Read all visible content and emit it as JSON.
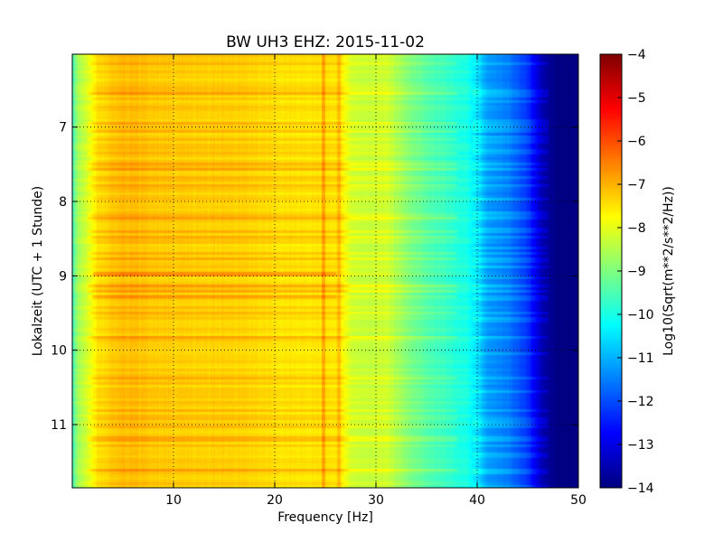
{
  "chart_data": {
    "type": "heatmap",
    "title": "BW UH3 EHZ: 2015-11-02",
    "xlabel": "Frequency [Hz]",
    "ylabel": "Lokalzeit (UTC + 1 Stunde)",
    "colorbar_label": "Log10(Sqrt(m**2/s**2/Hz))",
    "xlim": [
      0,
      50
    ],
    "ylim": [
      11.85,
      6.02
    ],
    "y_inverted": true,
    "xticks": [
      10,
      20,
      30,
      40,
      50
    ],
    "xtick_labels": [
      "10",
      "20",
      "30",
      "40",
      "50"
    ],
    "yticks": [
      7,
      8,
      9,
      10,
      11
    ],
    "ytick_labels": [
      "7",
      "8",
      "9",
      "10",
      "11"
    ],
    "colorbar_range": [
      -14,
      -4
    ],
    "colorbar_ticks": [
      -4,
      -5,
      -6,
      -7,
      -8,
      -9,
      -10,
      -11,
      -12,
      -13,
      -14
    ],
    "colorbar_tick_labels": [
      "−4",
      "−5",
      "−6",
      "−7",
      "−8",
      "−9",
      "−10",
      "−11",
      "−12",
      "−13",
      "−14"
    ],
    "colormap": "jet",
    "grid": "dotted",
    "frequency_profile": {
      "frequency_hz": [
        0,
        0.5,
        1.5,
        2.5,
        5,
        10,
        17,
        22,
        24,
        25.5,
        26.5,
        27.5,
        29,
        31,
        33,
        35,
        37,
        39,
        41,
        43,
        45,
        46.5,
        48,
        50
      ],
      "log10_amplitude": [
        -9.6,
        -8.6,
        -8.1,
        -7.4,
        -7.05,
        -7.25,
        -7.3,
        -7.5,
        -7.45,
        -7.5,
        -7.55,
        -8.2,
        -8.3,
        -8.2,
        -8.9,
        -9.4,
        -9.7,
        -10.0,
        -11.2,
        -11.6,
        -12.3,
        -13.6,
        -14.0,
        -14.0
      ]
    },
    "features": [
      {
        "type": "hline",
        "time": 8.9,
        "strength": 0.5
      },
      {
        "type": "hline",
        "time": 8.6,
        "strength": 0.3
      },
      {
        "type": "vline",
        "frequency_hz": 24.8,
        "strength": 0.6
      },
      {
        "type": "vline",
        "frequency_hz": 26.3,
        "strength": 0.4
      }
    ]
  }
}
